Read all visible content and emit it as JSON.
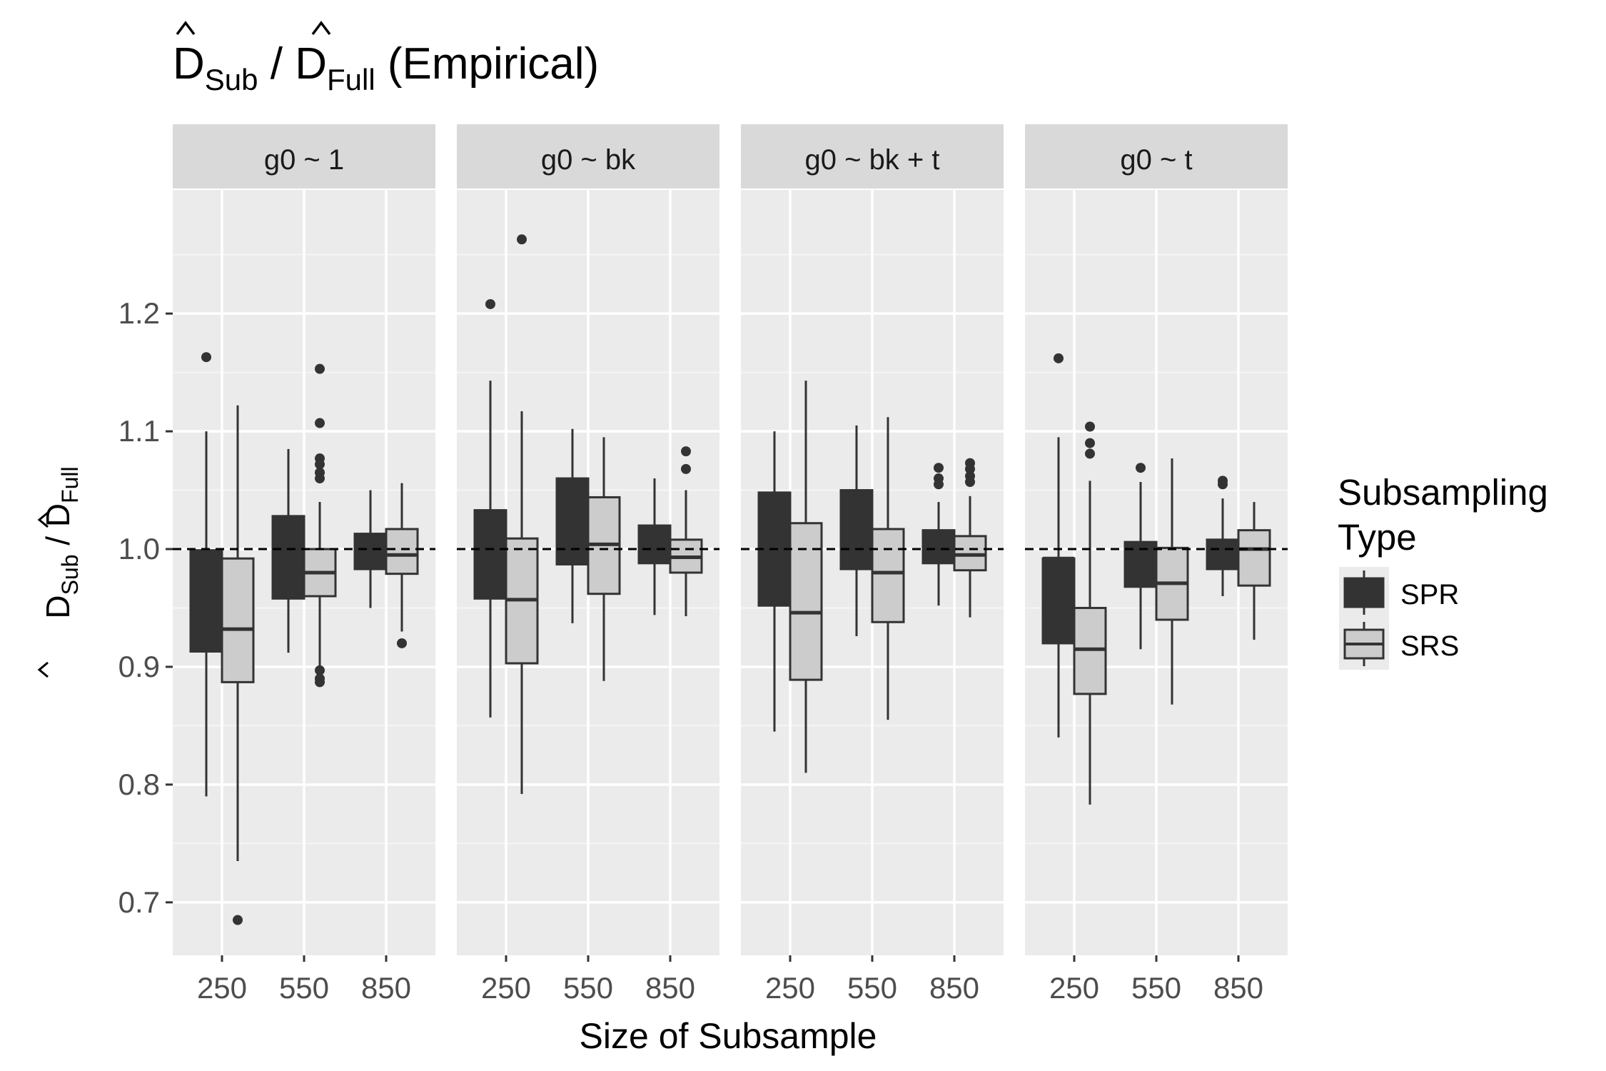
{
  "chart_data": {
    "type": "box",
    "title": {
      "base": "D",
      "sub1": "Sub",
      "sep": " / ",
      "sub2": "Full",
      "suffix": " (Empirical)"
    },
    "ylabel": {
      "base": "D",
      "sub1": "Sub",
      "sep": " / ",
      "sub2": "Full"
    },
    "xlabel": "Size of Subsample",
    "ylim": [
      0.655,
      1.305
    ],
    "y_ticks": [
      0.7,
      0.8,
      0.9,
      1.0,
      1.1,
      1.2
    ],
    "y_tick_labels": [
      "0.7",
      "0.8",
      "0.9",
      "1.0",
      "1.1",
      "1.2"
    ],
    "reference_line": 1.0,
    "categories": [
      "250",
      "550",
      "850"
    ],
    "legend": {
      "title_lines": [
        "Subsampling",
        "Type"
      ],
      "position": "right"
    },
    "series": [
      {
        "name": "SPR",
        "color": "#333333"
      },
      {
        "name": "SRS",
        "color": "#cccccc"
      }
    ],
    "panels": [
      {
        "label": "g0 ~ 1",
        "boxes": [
          {
            "group": "SPR",
            "x": "250",
            "lower": 0.79,
            "q1": 0.913,
            "median": 0.998,
            "q3": 0.999,
            "upper": 1.1,
            "outliers": [
              1.163
            ]
          },
          {
            "group": "SRS",
            "x": "250",
            "lower": 0.735,
            "q1": 0.887,
            "median": 0.932,
            "q3": 0.992,
            "upper": 1.122,
            "outliers": [
              0.685
            ]
          },
          {
            "group": "SPR",
            "x": "550",
            "lower": 0.912,
            "q1": 0.958,
            "median": 0.998,
            "q3": 1.028,
            "upper": 1.085,
            "outliers": []
          },
          {
            "group": "SRS",
            "x": "550",
            "lower": 0.9,
            "q1": 0.96,
            "median": 0.98,
            "q3": 1.0,
            "upper": 1.04,
            "outliers": [
              1.153,
              1.107,
              1.077,
              1.072,
              1.065,
              1.06,
              0.897,
              0.89,
              0.887
            ]
          },
          {
            "group": "SPR",
            "x": "850",
            "lower": 0.95,
            "q1": 0.983,
            "median": 1.0,
            "q3": 1.013,
            "upper": 1.05,
            "outliers": []
          },
          {
            "group": "SRS",
            "x": "850",
            "lower": 0.93,
            "q1": 0.979,
            "median": 0.995,
            "q3": 1.017,
            "upper": 1.056,
            "outliers": [
              0.92
            ]
          }
        ]
      },
      {
        "label": "g0 ~ bk",
        "boxes": [
          {
            "group": "SPR",
            "x": "250",
            "lower": 0.857,
            "q1": 0.958,
            "median": 1.0,
            "q3": 1.033,
            "upper": 1.143,
            "outliers": [
              1.208
            ]
          },
          {
            "group": "SRS",
            "x": "250",
            "lower": 0.792,
            "q1": 0.903,
            "median": 0.957,
            "q3": 1.009,
            "upper": 1.117,
            "outliers": [
              1.263
            ]
          },
          {
            "group": "SPR",
            "x": "550",
            "lower": 0.937,
            "q1": 0.987,
            "median": 1.0,
            "q3": 1.06,
            "upper": 1.102,
            "outliers": []
          },
          {
            "group": "SRS",
            "x": "550",
            "lower": 0.888,
            "q1": 0.962,
            "median": 1.004,
            "q3": 1.044,
            "upper": 1.095,
            "outliers": []
          },
          {
            "group": "SPR",
            "x": "850",
            "lower": 0.944,
            "q1": 0.988,
            "median": 1.0,
            "q3": 1.02,
            "upper": 1.06,
            "outliers": []
          },
          {
            "group": "SRS",
            "x": "850",
            "lower": 0.943,
            "q1": 0.98,
            "median": 0.993,
            "q3": 1.008,
            "upper": 1.05,
            "outliers": [
              1.083,
              1.068
            ]
          }
        ]
      },
      {
        "label": "g0 ~ bk + t",
        "boxes": [
          {
            "group": "SPR",
            "x": "250",
            "lower": 0.845,
            "q1": 0.952,
            "median": 1.0,
            "q3": 1.048,
            "upper": 1.1,
            "outliers": []
          },
          {
            "group": "SRS",
            "x": "250",
            "lower": 0.81,
            "q1": 0.889,
            "median": 0.946,
            "q3": 1.022,
            "upper": 1.143,
            "outliers": []
          },
          {
            "group": "SPR",
            "x": "550",
            "lower": 0.926,
            "q1": 0.983,
            "median": 1.0,
            "q3": 1.05,
            "upper": 1.105,
            "outliers": []
          },
          {
            "group": "SRS",
            "x": "550",
            "lower": 0.855,
            "q1": 0.938,
            "median": 0.98,
            "q3": 1.017,
            "upper": 1.112,
            "outliers": []
          },
          {
            "group": "SPR",
            "x": "850",
            "lower": 0.952,
            "q1": 0.988,
            "median": 1.0,
            "q3": 1.016,
            "upper": 1.04,
            "outliers": [
              1.069,
              1.06,
              1.055
            ]
          },
          {
            "group": "SRS",
            "x": "850",
            "lower": 0.942,
            "q1": 0.982,
            "median": 0.995,
            "q3": 1.011,
            "upper": 1.045,
            "outliers": [
              1.073,
              1.068,
              1.062,
              1.057
            ]
          }
        ]
      },
      {
        "label": "g0 ~ t",
        "boxes": [
          {
            "group": "SPR",
            "x": "250",
            "lower": 0.84,
            "q1": 0.92,
            "median": 0.992,
            "q3": 0.992,
            "upper": 1.095,
            "outliers": [
              1.162
            ]
          },
          {
            "group": "SRS",
            "x": "250",
            "lower": 0.783,
            "q1": 0.877,
            "median": 0.915,
            "q3": 0.95,
            "upper": 1.058,
            "outliers": [
              1.104,
              1.09,
              1.081
            ]
          },
          {
            "group": "SPR",
            "x": "550",
            "lower": 0.915,
            "q1": 0.968,
            "median": 1.0,
            "q3": 1.006,
            "upper": 1.057,
            "outliers": [
              1.069
            ]
          },
          {
            "group": "SRS",
            "x": "550",
            "lower": 0.868,
            "q1": 0.94,
            "median": 0.971,
            "q3": 1.001,
            "upper": 1.077,
            "outliers": []
          },
          {
            "group": "SPR",
            "x": "850",
            "lower": 0.96,
            "q1": 0.983,
            "median": 1.0,
            "q3": 1.008,
            "upper": 1.043,
            "outliers": [
              1.058,
              1.055
            ]
          },
          {
            "group": "SRS",
            "x": "850",
            "lower": 0.923,
            "q1": 0.969,
            "median": 1.0,
            "q3": 1.016,
            "upper": 1.04,
            "outliers": []
          }
        ]
      }
    ]
  }
}
